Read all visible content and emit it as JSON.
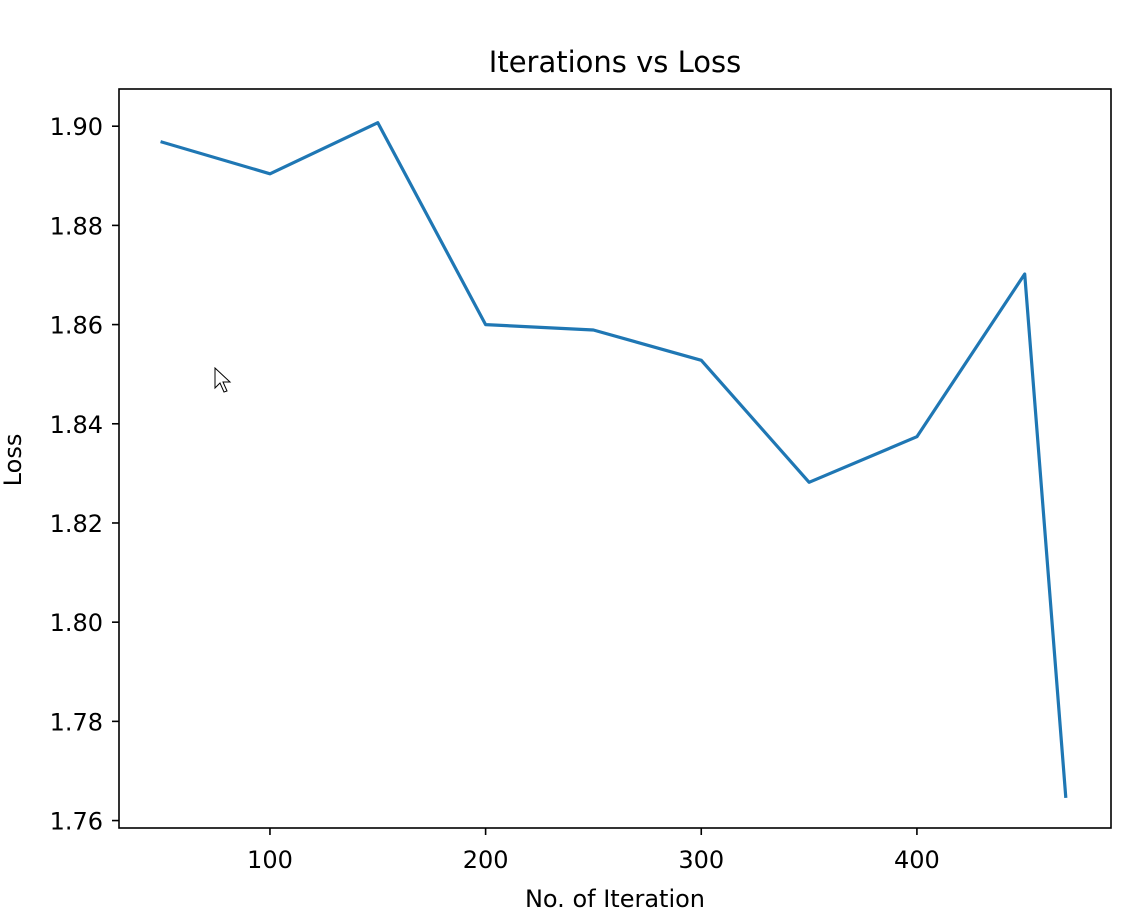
{
  "chart_data": {
    "type": "line",
    "title": "Iterations vs Loss",
    "xlabel": "No. of Iteration",
    "ylabel": "Loss",
    "xlim": [
      30,
      490
    ],
    "ylim": [
      1.7585,
      1.9075
    ],
    "xticks": [
      100,
      200,
      300,
      400
    ],
    "xtick_labels": [
      "100",
      "200",
      "300",
      "400"
    ],
    "yticks": [
      1.76,
      1.78,
      1.8,
      1.82,
      1.84,
      1.86,
      1.88,
      1.9
    ],
    "ytick_labels": [
      "1.76",
      "1.78",
      "1.80",
      "1.82",
      "1.84",
      "1.86",
      "1.88",
      "1.90"
    ],
    "grid": false,
    "series": [
      {
        "color": "#1f77b4",
        "x": [
          50,
          100,
          150,
          200,
          250,
          300,
          350,
          400,
          450,
          469
        ],
        "y": [
          1.8968,
          1.8904,
          1.9007,
          1.86,
          1.8589,
          1.8528,
          1.8282,
          1.8374,
          1.8702,
          1.7649
        ]
      }
    ]
  }
}
